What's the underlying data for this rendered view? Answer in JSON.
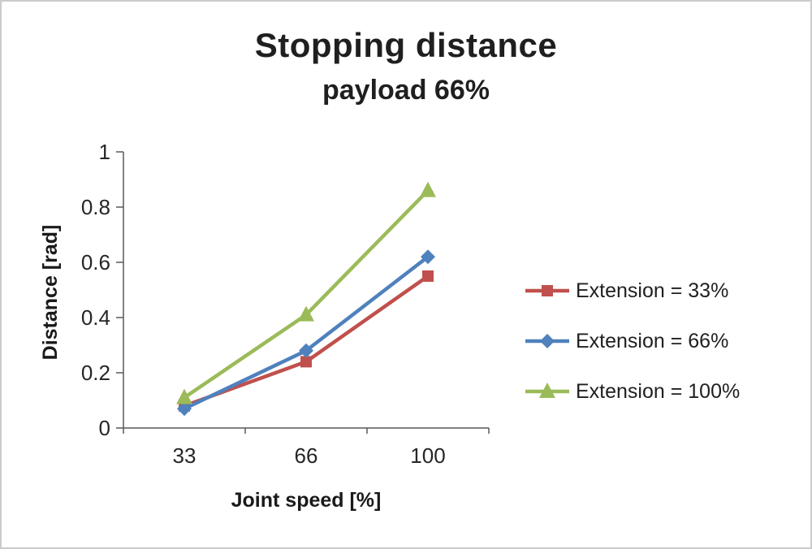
{
  "title": "Stopping distance",
  "subtitle": "payload 66%",
  "chart_data": {
    "type": "line",
    "categories": [
      "33",
      "66",
      "100"
    ],
    "series": [
      {
        "name": "Extension = 33%",
        "values": [
          0.08,
          0.24,
          0.55
        ],
        "color": "#C0504D",
        "marker": "square"
      },
      {
        "name": "Extension = 66%",
        "values": [
          0.07,
          0.28,
          0.62
        ],
        "color": "#4F81BD",
        "marker": "diamond"
      },
      {
        "name": "Extension = 100%",
        "values": [
          0.11,
          0.41,
          0.86
        ],
        "color": "#9BBB59",
        "marker": "triangle"
      }
    ],
    "xlabel": "Joint speed [%]",
    "ylabel": "Distance [rad]",
    "ylim": [
      0,
      1
    ],
    "yticks": [
      0,
      0.2,
      0.4,
      0.6,
      0.8,
      1
    ],
    "ytick_labels": [
      "0",
      "0.2",
      "0.4",
      "0.6",
      "0.8",
      "1"
    ],
    "grid": false,
    "legend_position": "right"
  },
  "colors": {
    "axis_line": "#595959",
    "tick_text": "#262626",
    "frame_border": "#cbcbcb"
  }
}
